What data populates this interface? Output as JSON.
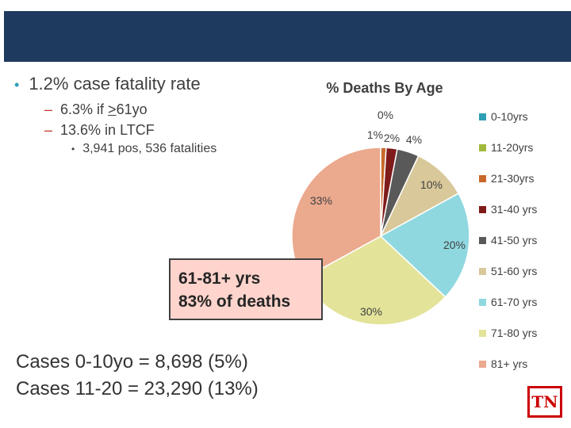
{
  "slide": {
    "bullets": [
      {
        "text": "1.2% case fatality rate"
      },
      {
        "prefix": "6.3% if ",
        "underline": ">",
        "suffix": "61yo"
      },
      {
        "text": "13.6% in LTCF"
      },
      {
        "text": "3,941 pos, 536 fatalities"
      }
    ],
    "callout": {
      "line1": "61-81+ yrs",
      "line2": "83% of deaths"
    },
    "cases": {
      "line1": "Cases 0-10yo = 8,698 (5%)",
      "line2": "Cases 11-20 = 23,290 (13%)"
    },
    "logo_text": "TN"
  },
  "chart_data": {
    "type": "pie",
    "title": "% Deaths By Age",
    "slices": [
      {
        "label": "0-10yrs",
        "value": 0,
        "data_label": "0%",
        "color": "#2e9fb5"
      },
      {
        "label": "11-20yrs",
        "value": 0,
        "data_label": "",
        "color": "#a0b93c"
      },
      {
        "label": "21-30yrs",
        "value": 1,
        "data_label": "1%",
        "color": "#c8692b"
      },
      {
        "label": "31-40 yrs",
        "value": 2,
        "data_label": "2%",
        "color": "#7f1b1b"
      },
      {
        "label": "41-50 yrs",
        "value": 4,
        "data_label": "4%",
        "color": "#595959"
      },
      {
        "label": "51-60 yrs",
        "value": 10,
        "data_label": "10%",
        "color": "#d9c89a"
      },
      {
        "label": "61-70 yrs",
        "value": 20,
        "data_label": "20%",
        "color": "#8fd8e0"
      },
      {
        "label": "71-80 yrs",
        "value": 30,
        "data_label": "30%",
        "color": "#e3e39a"
      },
      {
        "label": "81+ yrs",
        "value": 33,
        "data_label": "33%",
        "color": "#eba98e"
      }
    ],
    "legend_position": "right"
  }
}
